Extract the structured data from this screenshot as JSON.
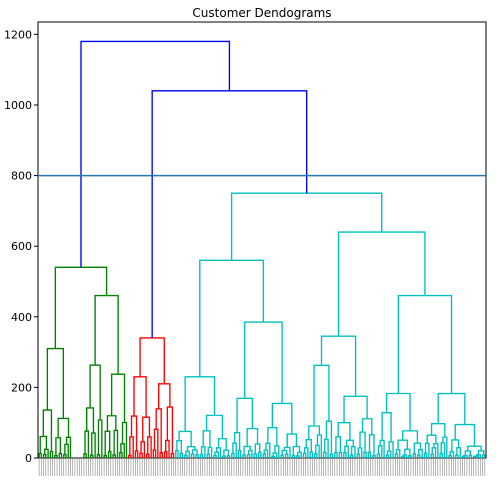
{
  "chart_data": {
    "type": "dendrogram",
    "title": "Customer Dendograms",
    "xlabel": "",
    "ylabel": "",
    "ylim": [
      0,
      1235
    ],
    "y_ticks": [
      0,
      200,
      400,
      600,
      800,
      1000,
      1200
    ],
    "threshold_line": 800,
    "threshold_color": "#1f77b4",
    "leaf_count": 200,
    "clusters": [
      {
        "color": "#008000",
        "leaf_start": 0,
        "leaf_end": 39,
        "top_height": 540
      },
      {
        "color": "#ff0000",
        "leaf_start": 40,
        "leaf_end": 60,
        "top_height": 340
      },
      {
        "color": "#00bfbf",
        "leaf_start": 61,
        "leaf_end": 199,
        "top_height": 750
      }
    ],
    "merges": [
      {
        "name": "green-main",
        "color": "#008000",
        "height": 540,
        "left": [
          0,
          14,
          310
        ],
        "right": [
          20,
          39,
          460
        ]
      },
      {
        "name": "red-main",
        "color": "#ff0000",
        "height": 340,
        "left": [
          40,
          50,
          230
        ],
        "right": [
          51,
          60,
          210
        ]
      },
      {
        "name": "cyan-main",
        "color": "#00bfbf",
        "height": 750,
        "left": [
          61,
          117,
          560
        ],
        "right": [
          118,
          199,
          640
        ]
      },
      {
        "name": "cyan-left",
        "color": "#00bfbf",
        "height": 560,
        "left": [
          61,
          85,
          230
        ],
        "right": [
          86,
          117,
          385
        ]
      },
      {
        "name": "cyan-right",
        "color": "#00bfbf",
        "height": 640,
        "left": [
          118,
          150,
          345
        ],
        "right": [
          151,
          199,
          460
        ]
      },
      {
        "name": "upper-red-cyan",
        "color": "#0000ff",
        "height": 1040,
        "left": [
          40,
          60,
          340
        ],
        "right": [
          61,
          199,
          750
        ]
      },
      {
        "name": "root",
        "color": "#0000ff",
        "height": 1180,
        "left": [
          0,
          39,
          540
        ],
        "right": [
          40,
          199,
          1040
        ]
      }
    ],
    "colors": {
      "root_link": "#0000ff",
      "green": "#008000",
      "red": "#ff0000",
      "cyan": "#00bfbf",
      "threshold": "#1f77b4",
      "axis": "#000000"
    }
  }
}
